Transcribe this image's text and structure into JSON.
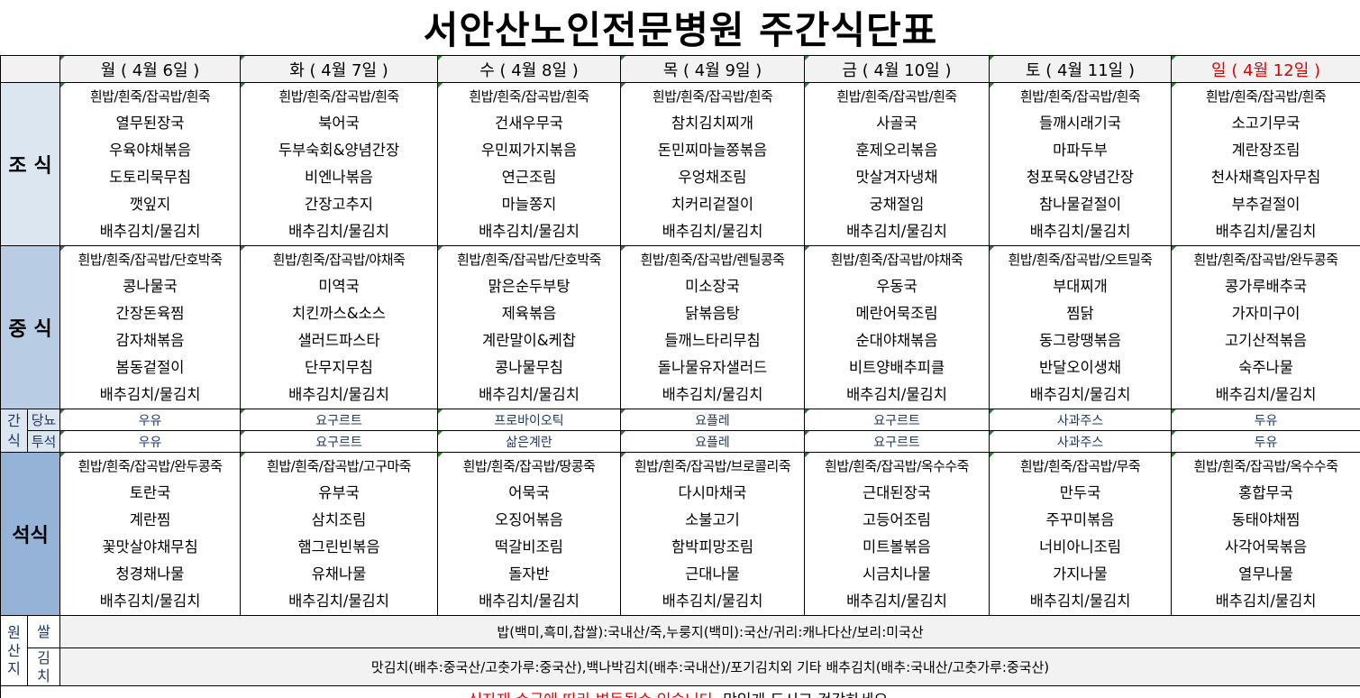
{
  "title": "서안산노인전문병원 주간식단표",
  "days": [
    "월 ( 4월 6일 )",
    "화 ( 4월 7일 )",
    "수 ( 4월 8일 )",
    "목 ( 4월 9일 )",
    "금 ( 4월 10일 )",
    "토 ( 4월 11일 )",
    "일 ( 4월 12일 )"
  ],
  "meals": [
    {
      "label": "조 식",
      "items": [
        [
          "흰밥/흰죽/잡곡밥/흰죽",
          "열무된장국",
          "우육야채볶음",
          "도토리묵무침",
          "깻잎지",
          "배추김치/물김치"
        ],
        [
          "흰밥/흰죽/잡곡밥/흰죽",
          "북어국",
          "두부숙회&양념간장",
          "비엔나볶음",
          "간장고추지",
          "배추김치/물김치"
        ],
        [
          "흰밥/흰죽/잡곡밥/흰죽",
          "건새우무국",
          "우민찌가지볶음",
          "연근조림",
          "마늘쫑지",
          "배추김치/물김치"
        ],
        [
          "흰밥/흰죽/잡곡밥/흰죽",
          "참치김치찌개",
          "돈민찌마늘쫑볶음",
          "우엉채조림",
          "치커리겉절이",
          "배추김치/물김치"
        ],
        [
          "흰밥/흰죽/잡곡밥/흰죽",
          "사골국",
          "훈제오리볶음",
          "맛살겨자냉채",
          "궁채절임",
          "배추김치/물김치"
        ],
        [
          "흰밥/흰죽/잡곡밥/흰죽",
          "들깨시래기국",
          "마파두부",
          "청포묵&양념간장",
          "참나물겉절이",
          "배추김치/물김치"
        ],
        [
          "흰밥/흰죽/잡곡밥/흰죽",
          "소고기무국",
          "계란장조림",
          "천사채흑임자무침",
          "부추겉절이",
          "배추김치/물김치"
        ]
      ]
    },
    {
      "label": "중 식",
      "items": [
        [
          "흰밥/흰죽/잡곡밥/단호박죽",
          "콩나물국",
          "간장돈육찜",
          "감자채볶음",
          "봄동겉절이",
          "배추김치/물김치"
        ],
        [
          "흰밥/흰죽/잡곡밥/야채죽",
          "미역국",
          "치킨까스&소스",
          "샐러드파스타",
          "단무지무침",
          "배추김치/물김치"
        ],
        [
          "흰밥/흰죽/잡곡밥/단호박죽",
          "맑은순두부탕",
          "제육볶음",
          "계란말이&케찹",
          "콩나물무침",
          "배추김치/물김치"
        ],
        [
          "흰밥/흰죽/잡곡밥/렌틸콩죽",
          "미소장국",
          "닭볶음탕",
          "들깨느타리무침",
          "돌나물유자샐러드",
          "배추김치/물김치"
        ],
        [
          "흰밥/흰죽/잡곡밥/야채죽",
          "우동국",
          "메란어묵조림",
          "순대야채볶음",
          "비트양배추피클",
          "배추김치/물김치"
        ],
        [
          "흰밥/흰죽/잡곡밥/오트밀죽",
          "부대찌개",
          "찜닭",
          "동그랑땡볶음",
          "반달오이생채",
          "배추김치/물김치"
        ],
        [
          "흰밥/흰죽/잡곡밥/완두콩죽",
          "콩가루배추국",
          "가자미구이",
          "고기산적볶음",
          "숙주나물",
          "배추김치/물김치"
        ]
      ]
    },
    {
      "label": "석식",
      "items": [
        [
          "흰밥/흰죽/잡곡밥/완두콩죽",
          "토란국",
          "계란찜",
          "꽃맛살야채무침",
          "청경채나물",
          "배추김치/물김치"
        ],
        [
          "흰밥/흰죽/잡곡밥/고구마죽",
          "유부국",
          "삼치조림",
          "햄그린빈볶음",
          "유채나물",
          "배추김치/물김치"
        ],
        [
          "흰밥/흰죽/잡곡밥/땅콩죽",
          "어묵국",
          "오징어볶음",
          "떡갈비조림",
          "돌자반",
          "배추김치/물김치"
        ],
        [
          "흰밥/흰죽/잡곡밥/브로콜리죽",
          "다시마채국",
          "소불고기",
          "함박피망조림",
          "근대나물",
          "배추김치/물김치"
        ],
        [
          "흰밥/흰죽/잡곡밥/옥수수죽",
          "근대된장국",
          "고등어조림",
          "미트볼볶음",
          "시금치나물",
          "배추김치/물김치"
        ],
        [
          "흰밥/흰죽/잡곡밥/무죽",
          "만두국",
          "주꾸미볶음",
          "너비아니조림",
          "가지나물",
          "배추김치/물김치"
        ],
        [
          "흰밥/흰죽/잡곡밥/옥수수죽",
          "홍합무국",
          "동태야채찜",
          "사각어묵볶음",
          "열무나물",
          "배추김치/물김치"
        ]
      ]
    }
  ],
  "snack": {
    "label": "간\n식",
    "rows": [
      {
        "label": "당뇨",
        "values": [
          "우유",
          "요구르트",
          "프로바이오틱",
          "요플레",
          "요구르트",
          "사과주스",
          "두유"
        ]
      },
      {
        "label": "투석",
        "values": [
          "우유",
          "요구르트",
          "삶은계란",
          "요플레",
          "요구르트",
          "사과주스",
          "두유"
        ]
      }
    ]
  },
  "origin": {
    "label": "원\n산\n지",
    "rows": [
      {
        "label": "쌀",
        "text": "밥(백미,흑미,찹쌀):국내산/죽,누룽지(백미):국산/귀리:캐나다산/보리:미국산"
      },
      {
        "label": "김\n치",
        "text": "맛김치(배추:중국산/고춧가루:중국산),백나박김치(배추:국내산)/포기김치외 기타 배추김치(배추:국내산/고춧가루:중국산)"
      }
    ]
  },
  "footer": {
    "warning": "식자재 수급에 따라 변동될수 있습니다",
    "message": ". 맛있게 드시고 건강하세요."
  },
  "colors": {
    "sunday": "#e00000",
    "breakfast_label": "#dce6f1",
    "lunch_label": "#b8cce4",
    "dinner_label": "#95b3d7",
    "snack_text": "#1f3864"
  }
}
